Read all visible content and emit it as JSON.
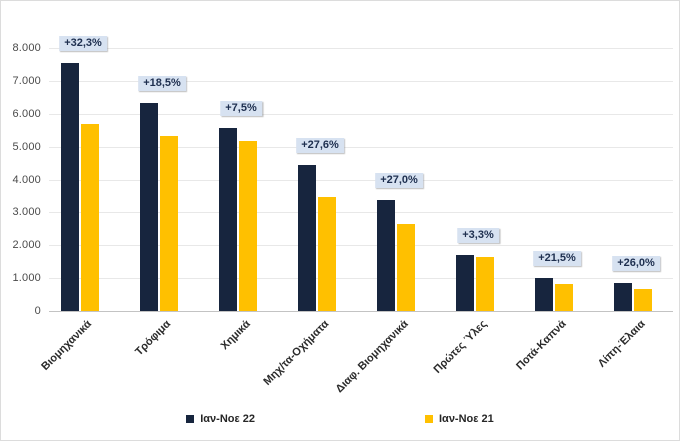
{
  "chart_data": {
    "type": "bar",
    "categories": [
      "Βιομηχανικά",
      "Τρόφιμα",
      "Χημικά",
      "Μηχ/τα-Οχήματα",
      "Διαφ. Βιομηχανικά",
      "Πρώτες Ύλες",
      "Ποτά-Καπνά",
      "Λίπη-Έλαια"
    ],
    "series": [
      {
        "name": "Ιαν-Νοε 22",
        "color": "#17253E",
        "values": [
          7540,
          6320,
          5570,
          4440,
          3370,
          1700,
          1010,
          840
        ]
      },
      {
        "name": "Ιαν-Νοε 21",
        "color": "#FFC000",
        "values": [
          5700,
          5330,
          5180,
          3480,
          2650,
          1650,
          830,
          665
        ]
      }
    ],
    "bar_labels": [
      "+32,3%",
      "+18,5%",
      "+7,5%",
      "+27,6%",
      "+27,0%",
      "+3,3%",
      "+21,5%",
      "+26,0%"
    ],
    "y_ticks": [
      "8.000",
      "7.000",
      "6.000",
      "5.000",
      "4.000",
      "3.000",
      "2.000",
      "1.000",
      "0"
    ],
    "ylim": [
      0,
      8000
    ],
    "grid": true,
    "legend_position": "bottom",
    "label_chip_bg": "#D7E2F1",
    "label_chip_text": "#1E2F4F"
  }
}
